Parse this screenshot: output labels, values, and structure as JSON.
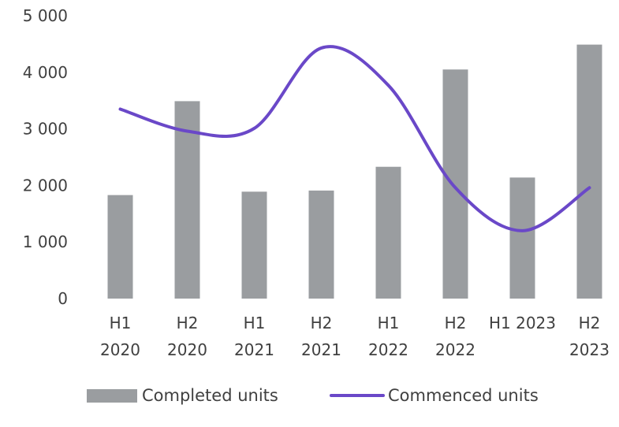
{
  "chart_data": {
    "type": "bar",
    "categories": [
      [
        "H1",
        "2020"
      ],
      [
        "H2",
        "2020"
      ],
      [
        "H1",
        "2021"
      ],
      [
        "H2",
        "2021"
      ],
      [
        "H1",
        "2022"
      ],
      [
        "H2",
        "2022"
      ],
      [
        "H1 2023"
      ],
      [
        "H2",
        "2023"
      ]
    ],
    "series": [
      {
        "name": "Completed units",
        "type": "bar",
        "color": "#9a9da0",
        "values": [
          1830,
          3490,
          1890,
          1910,
          2330,
          4050,
          2140,
          4490
        ]
      },
      {
        "name": "Commenced units",
        "type": "line",
        "smooth": true,
        "color": "#6a48c8",
        "values": [
          3350,
          2960,
          3010,
          4430,
          3770,
          1960,
          1200,
          1960
        ]
      }
    ],
    "ylim": [
      0,
      5000
    ],
    "yticks": [
      0,
      1000,
      2000,
      3000,
      4000,
      5000
    ],
    "ytick_labels": [
      "0",
      "1 000",
      "2 000",
      "3 000",
      "4 000",
      "5 000"
    ],
    "grid": false,
    "legend_position": "bottom"
  },
  "legend": {
    "completed": "Completed units",
    "commenced": "Commenced units"
  }
}
